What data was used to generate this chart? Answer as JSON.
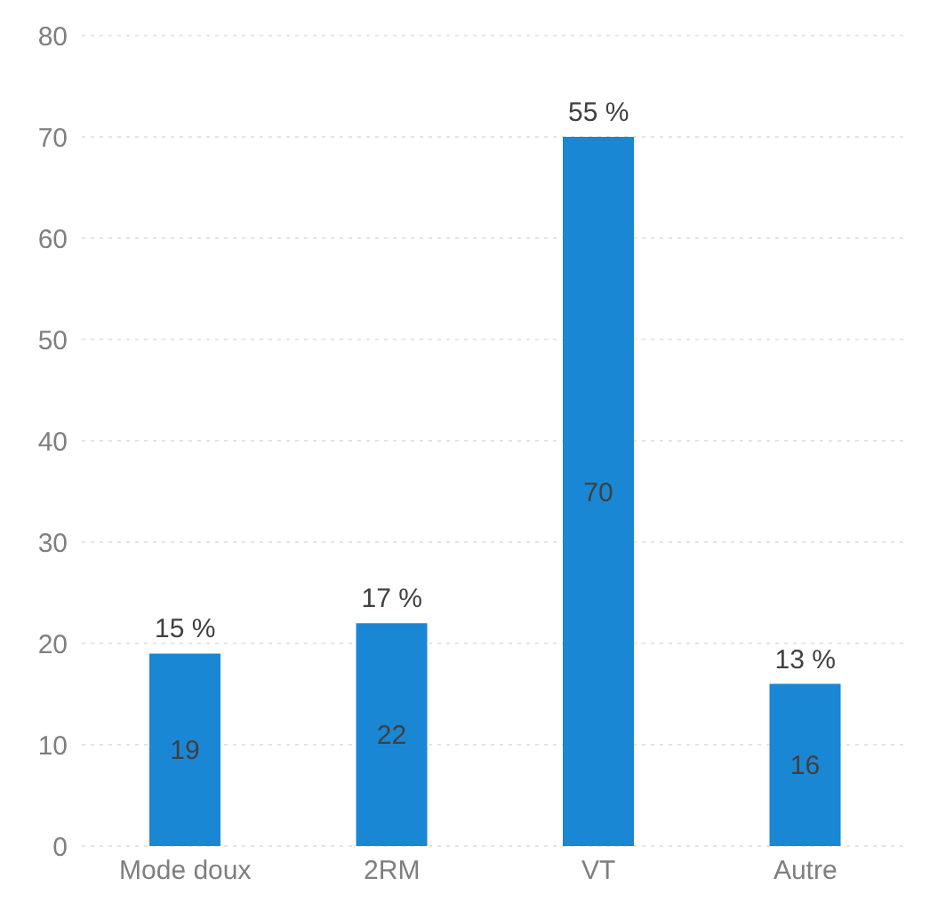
{
  "chart_data": {
    "type": "bar",
    "categories": [
      "Mode doux",
      "2RM",
      "VT",
      "Autre"
    ],
    "values": [
      19,
      22,
      70,
      16
    ],
    "color": "#1a87d4",
    "ylim": [
      0,
      80
    ],
    "yticks": [
      0,
      10,
      20,
      30,
      40,
      50,
      60,
      70,
      80
    ],
    "grid": "y",
    "data_labels": true,
    "annotations": [
      {
        "text": "15 %",
        "x": "Mode doux",
        "y": 19
      },
      {
        "text": "17 %",
        "x": "2RM",
        "y": 22
      },
      {
        "text": "55 %",
        "x": "VT",
        "y": 70
      },
      {
        "text": "13 %",
        "x": "Autre",
        "y": 16
      }
    ]
  }
}
